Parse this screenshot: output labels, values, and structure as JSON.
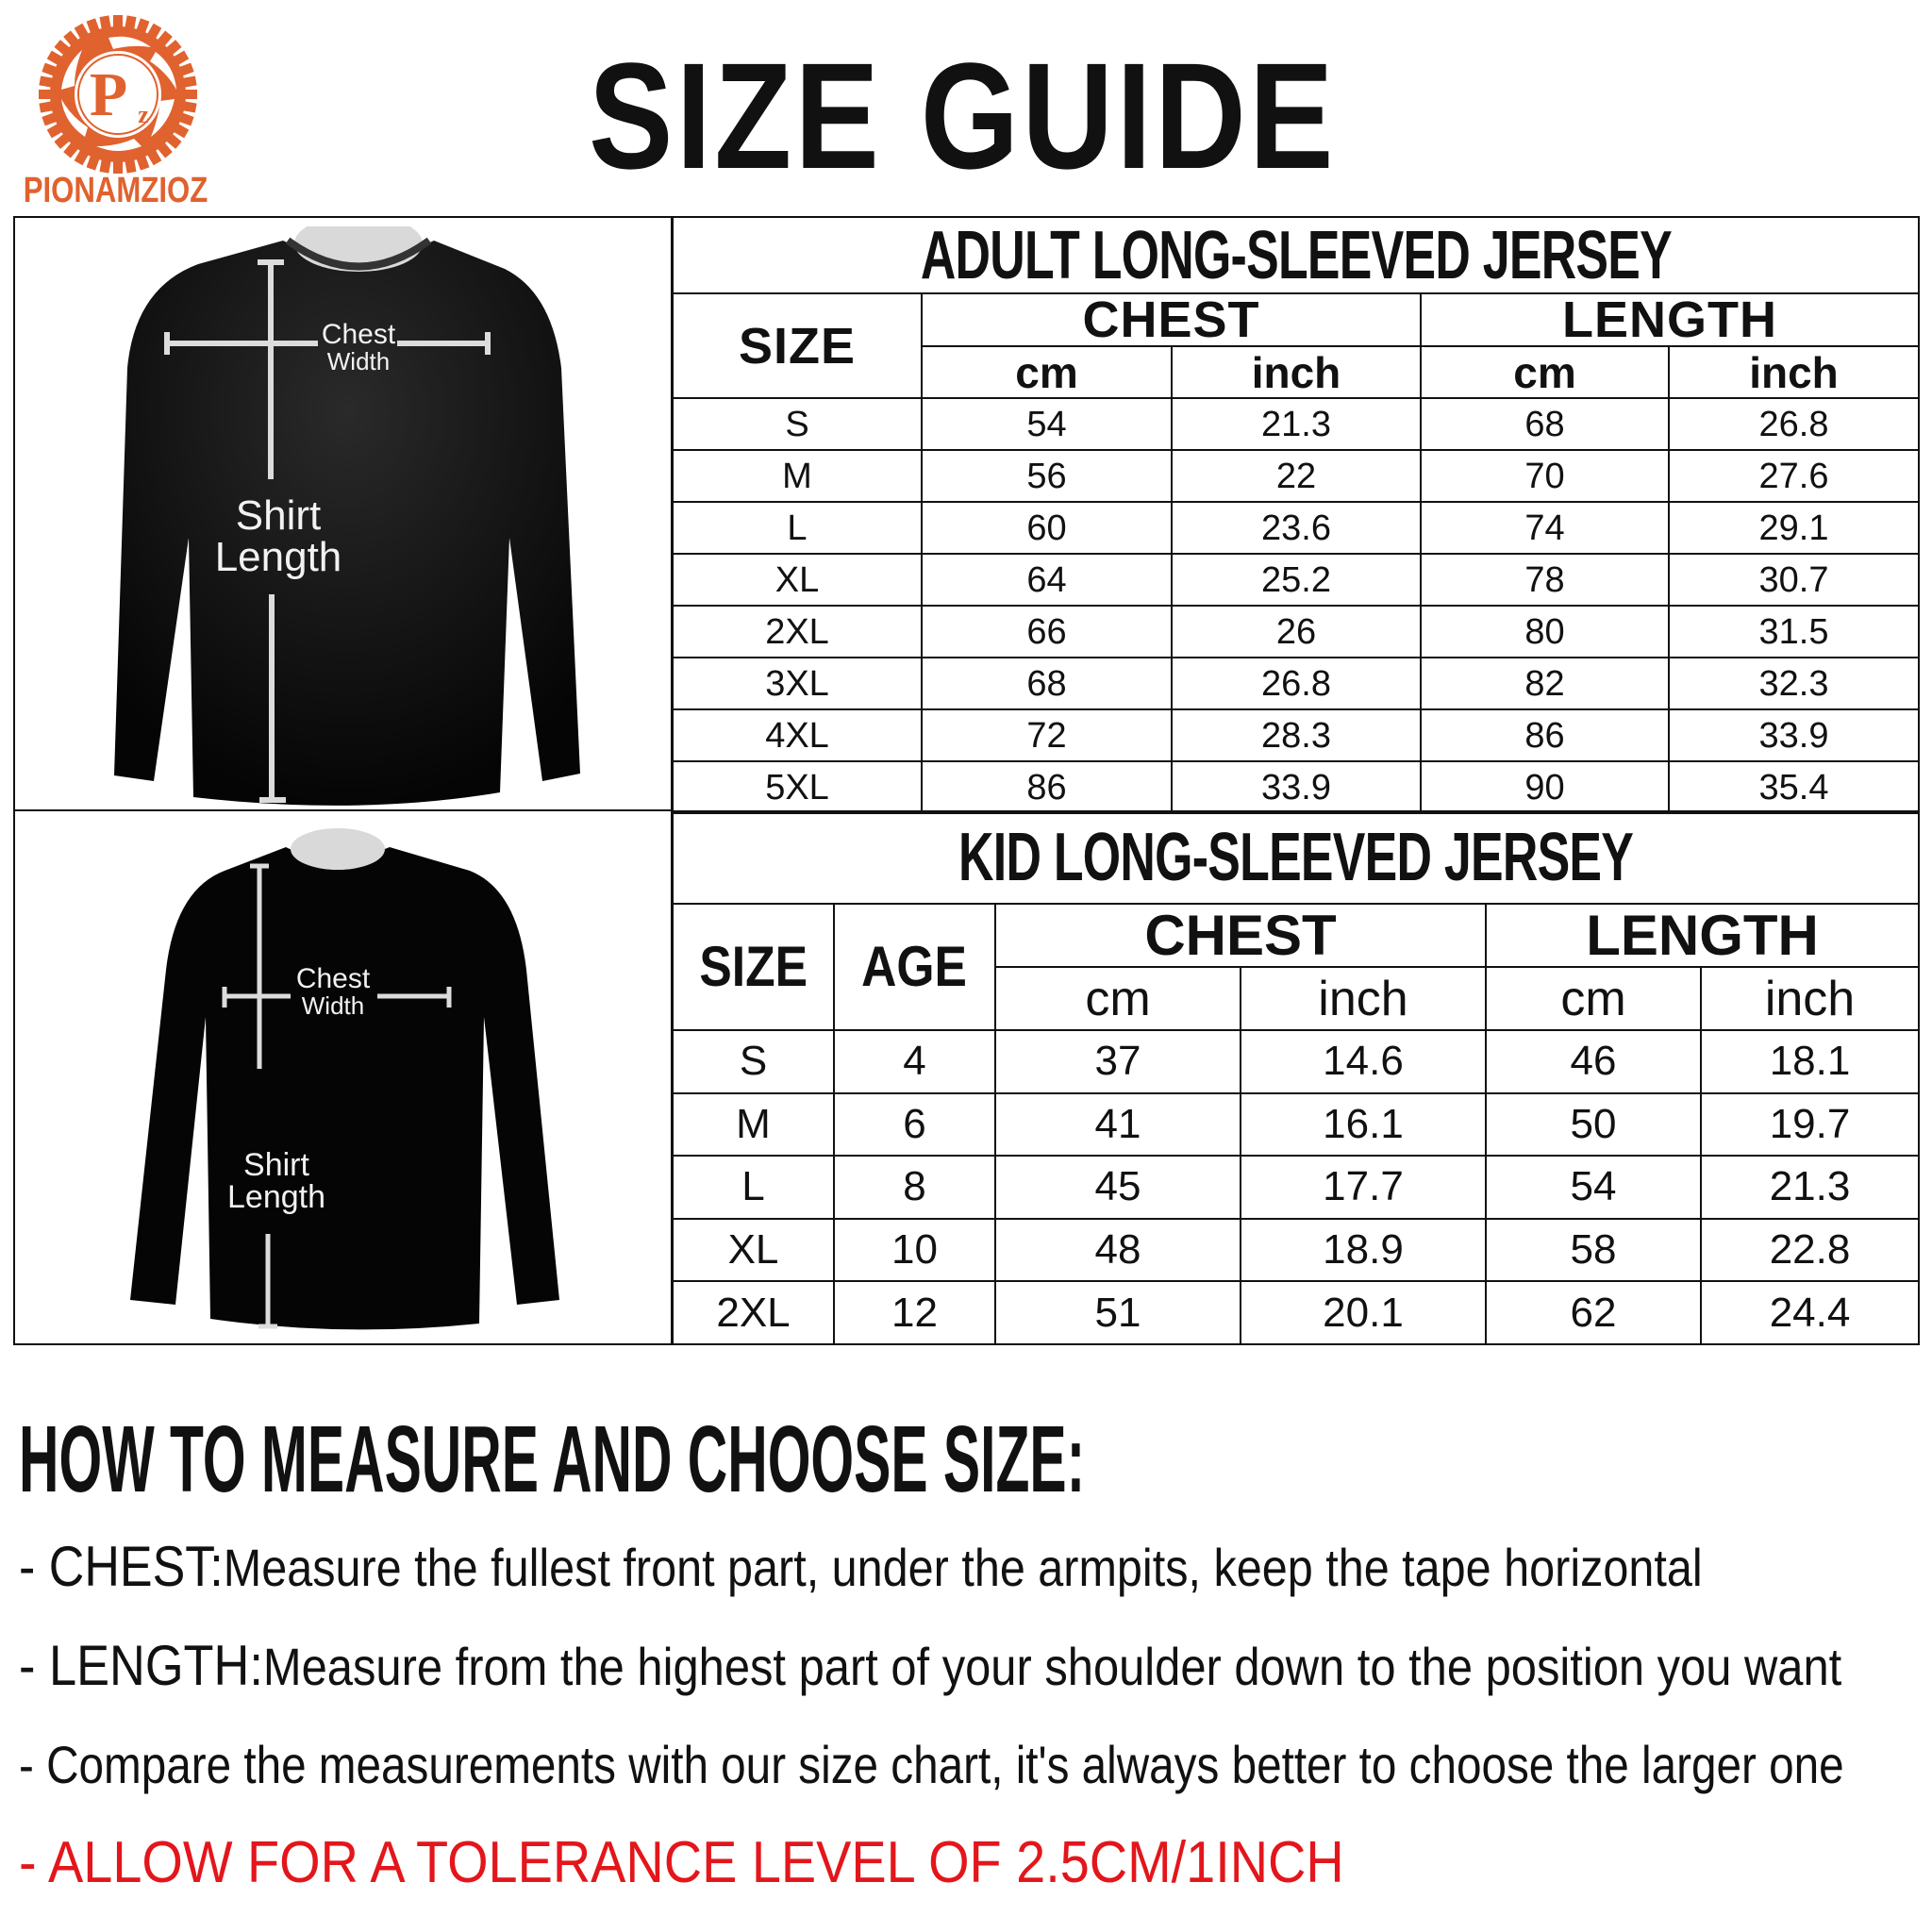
{
  "brand": {
    "name": "PIONAMZIOZ",
    "monogram": "P",
    "monogram_small": "z",
    "color": "#e0622f"
  },
  "title": "SIZE GUIDE",
  "diagram_labels": {
    "chest_line1": "Chest",
    "chest_line2": "Width",
    "length_line1": "Shirt",
    "length_line2": "Length"
  },
  "adult": {
    "title": "ADULT LONG-SLEEVED JERSEY",
    "headers": {
      "size": "SIZE",
      "chest": "CHEST",
      "length": "LENGTH",
      "cm": "cm",
      "inch": "inch"
    },
    "rows": [
      [
        "S",
        "54",
        "21.3",
        "68",
        "26.8"
      ],
      [
        "M",
        "56",
        "22",
        "70",
        "27.6"
      ],
      [
        "L",
        "60",
        "23.6",
        "74",
        "29.1"
      ],
      [
        "XL",
        "64",
        "25.2",
        "78",
        "30.7"
      ],
      [
        "2XL",
        "66",
        "26",
        "80",
        "31.5"
      ],
      [
        "3XL",
        "68",
        "26.8",
        "82",
        "32.3"
      ],
      [
        "4XL",
        "72",
        "28.3",
        "86",
        "33.9"
      ],
      [
        "5XL",
        "86",
        "33.9",
        "90",
        "35.4"
      ]
    ]
  },
  "kid": {
    "title": "KID LONG-SLEEVED JERSEY",
    "headers": {
      "size": "SIZE",
      "age": "AGE",
      "chest": "CHEST",
      "length": "LENGTH",
      "cm": "cm",
      "inch": "inch"
    },
    "rows": [
      [
        "S",
        "4",
        "37",
        "14.6",
        "46",
        "18.1"
      ],
      [
        "M",
        "6",
        "41",
        "16.1",
        "50",
        "19.7"
      ],
      [
        "L",
        "8",
        "45",
        "17.7",
        "54",
        "21.3"
      ],
      [
        "XL",
        "10",
        "48",
        "18.9",
        "58",
        "22.8"
      ],
      [
        "2XL",
        "12",
        "51",
        "20.1",
        "62",
        "24.4"
      ]
    ]
  },
  "howto": {
    "heading": "HOW TO MEASURE AND CHOOSE SIZE:",
    "lines": [
      {
        "label": "- CHEST:",
        "text": "Measure the fullest front part, under the armpits, keep the tape horizontal"
      },
      {
        "label": "- LENGTH:",
        "text": "Measure from the highest part of your shoulder down to the position you want"
      },
      {
        "label": "",
        "text": "- Compare the measurements with our size chart, it's always better to choose the larger one"
      },
      {
        "label": "",
        "text": "- ALLOW FOR A TOLERANCE LEVEL OF 2.5CM/1INCH"
      }
    ],
    "warning_color": "#e3161b"
  }
}
